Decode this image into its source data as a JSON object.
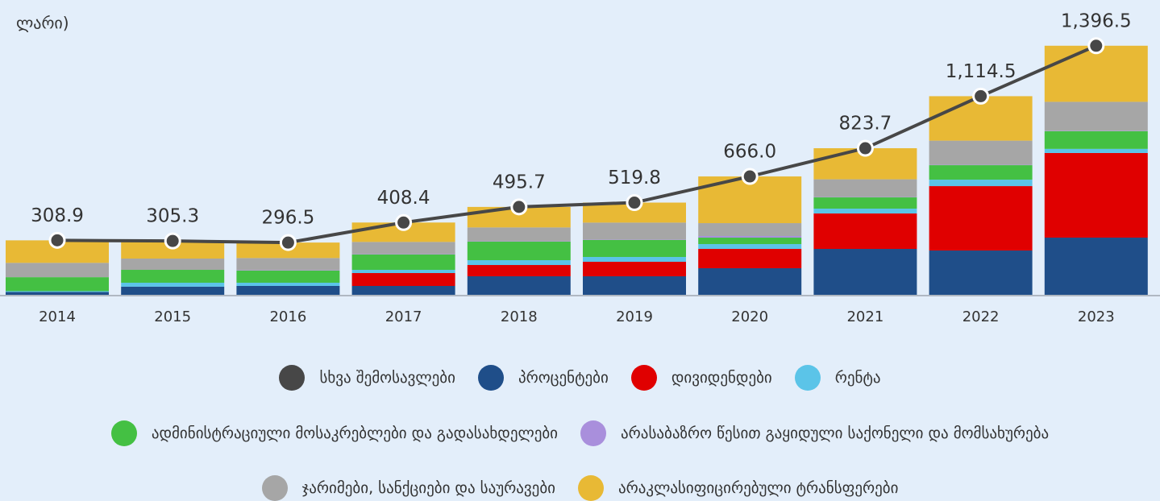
{
  "chart_data": {
    "type": "bar",
    "stacked": true,
    "title": "ლარი)",
    "categories": [
      "2014",
      "2015",
      "2016",
      "2017",
      "2018",
      "2019",
      "2020",
      "2021",
      "2022",
      "2023"
    ],
    "ylim": [
      0,
      1400
    ],
    "series": [
      {
        "name": "სხვა შემოსავლები",
        "type": "line",
        "color": "#474747",
        "values": [
          308.9,
          305.3,
          296.5,
          408.4,
          495.7,
          519.8,
          666.0,
          823.7,
          1114.5,
          1396.5
        ],
        "value_labels": [
          "308.9",
          "305.3",
          "296.5",
          "408.4",
          "495.7",
          "519.8",
          "666.0",
          "823.7",
          "1,114.5",
          "1,396.5"
        ]
      },
      {
        "name": "პროცენტები",
        "color": "#1f4e89",
        "values": [
          20,
          50,
          54,
          54,
          108,
          108,
          153,
          261,
          252,
          324
        ]
      },
      {
        "name": "დივიდენდები",
        "color": "#e00000",
        "values": [
          0,
          0,
          0,
          72,
          63,
          81,
          108,
          198,
          360,
          473
        ]
      },
      {
        "name": "რენტა",
        "color": "#5bc4e8",
        "values": [
          5,
          22,
          18,
          18,
          27,
          27,
          27,
          27,
          36,
          23
        ]
      },
      {
        "name": "ადმინისტრაციული მოსაკრებლები და გადასახდელები",
        "color": "#44c043",
        "values": [
          78,
          72,
          68,
          86,
          104,
          95,
          36,
          63,
          81,
          99
        ]
      },
      {
        "name": "არასაბაზრო წესით გაყიდული საქონელი და მომსახურება",
        "color": "#a98fdc",
        "values": [
          0,
          0,
          2,
          2,
          2,
          2,
          9,
          2,
          2,
          2
        ]
      },
      {
        "name": "ჯარიმები, სანქციები და საურავები",
        "color": "#a6a6a6",
        "values": [
          80,
          63,
          68,
          68,
          77,
          95,
          72,
          99,
          135,
          162
        ]
      },
      {
        "name": "არაკლასიფიცირებული ტრანსფერები",
        "color": "#e8b935",
        "values": [
          125.9,
          98.3,
          86.5,
          108.4,
          114.7,
          111.8,
          261,
          173.7,
          248.5,
          313.5
        ]
      }
    ]
  }
}
